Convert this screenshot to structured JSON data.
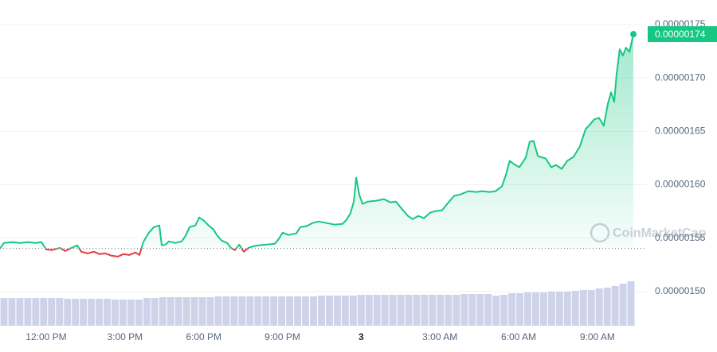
{
  "chart_data": {
    "type": "line",
    "x": [
      10.24,
      10.39,
      10.7,
      11.0,
      11.3,
      11.61,
      11.82,
      12.0,
      12.21,
      12.52,
      12.73,
      12.97,
      13.18,
      13.34,
      13.58,
      13.82,
      14.03,
      14.25,
      14.49,
      14.73,
      14.94,
      15.16,
      15.4,
      15.55,
      15.7,
      15.89,
      16.1,
      16.31,
      16.4,
      16.55,
      16.67,
      16.92,
      17.16,
      17.31,
      17.46,
      17.68,
      17.83,
      18.01,
      18.19,
      18.37,
      18.5,
      18.68,
      18.89,
      19.04,
      19.19,
      19.35,
      19.53,
      19.71,
      19.89,
      20.1,
      20.41,
      20.71,
      20.86,
      21.01,
      21.23,
      21.53,
      21.68,
      21.92,
      22.14,
      22.38,
      22.68,
      22.99,
      23.29,
      23.44,
      23.59,
      23.72,
      23.81,
      23.93,
      24.05,
      24.26,
      24.57,
      24.87,
      25.11,
      25.32,
      25.57,
      25.78,
      25.96,
      26.17,
      26.39,
      26.63,
      26.84,
      27.08,
      27.3,
      27.54,
      27.78,
      28.09,
      28.39,
      28.6,
      28.9,
      29.12,
      29.36,
      29.51,
      29.66,
      29.82,
      30.03,
      30.27,
      30.42,
      30.57,
      30.73,
      31.03,
      31.24,
      31.42,
      31.64,
      31.85,
      32.09,
      32.33,
      32.55,
      32.7,
      32.88,
      33.06,
      33.24,
      33.4,
      33.52,
      33.64,
      33.73,
      33.85,
      33.97,
      34.09,
      34.22,
      34.37
    ],
    "values": [
      1.5403e-06,
      1.5455e-06,
      1.5463e-06,
      1.5455e-06,
      1.5463e-06,
      1.5455e-06,
      1.5463e-06,
      1.5395e-06,
      1.5388e-06,
      1.541e-06,
      1.538e-06,
      1.541e-06,
      1.5433e-06,
      1.5373e-06,
      1.5358e-06,
      1.5373e-06,
      1.5351e-06,
      1.5358e-06,
      1.5336e-06,
      1.5328e-06,
      1.5351e-06,
      1.5343e-06,
      1.5366e-06,
      1.5343e-06,
      1.5463e-06,
      1.5545e-06,
      1.5604e-06,
      1.5619e-06,
      1.5433e-06,
      1.544e-06,
      1.547e-06,
      1.5455e-06,
      1.547e-06,
      1.5522e-06,
      1.5604e-06,
      1.5619e-06,
      1.5694e-06,
      1.5664e-06,
      1.5619e-06,
      1.5582e-06,
      1.553e-06,
      1.5478e-06,
      1.5455e-06,
      1.541e-06,
      1.5388e-06,
      1.544e-06,
      1.5373e-06,
      1.541e-06,
      1.5425e-06,
      1.5433e-06,
      1.544e-06,
      1.5448e-06,
      1.5493e-06,
      1.5552e-06,
      1.553e-06,
      1.5545e-06,
      1.5604e-06,
      1.5612e-06,
      1.5642e-06,
      1.5657e-06,
      1.5642e-06,
      1.5627e-06,
      1.5634e-06,
      1.5672e-06,
      1.5731e-06,
      1.5843e-06,
      1.6067e-06,
      1.5903e-06,
      1.5821e-06,
      1.5843e-06,
      1.5851e-06,
      1.5866e-06,
      1.5836e-06,
      1.5843e-06,
      1.5768e-06,
      1.5709e-06,
      1.5679e-06,
      1.5709e-06,
      1.5687e-06,
      1.5739e-06,
      1.5754e-06,
      1.5761e-06,
      1.5828e-06,
      1.5896e-06,
      1.591e-06,
      1.594e-06,
      1.5933e-06,
      1.594e-06,
      1.5933e-06,
      1.594e-06,
      1.5985e-06,
      1.609e-06,
      1.6224e-06,
      1.6194e-06,
      1.6164e-06,
      1.6254e-06,
      1.6403e-06,
      1.641e-06,
      1.6269e-06,
      1.6246e-06,
      1.6164e-06,
      1.6186e-06,
      1.6149e-06,
      1.6224e-06,
      1.6261e-06,
      1.6358e-06,
      1.6522e-06,
      1.656e-06,
      1.6612e-06,
      1.6627e-06,
      1.6552e-06,
      1.6761e-06,
      1.6866e-06,
      1.6776e-06,
      1.703e-06,
      1.7269e-06,
      1.7209e-06,
      1.7284e-06,
      1.7246e-06,
      1.741e-06
    ],
    "baseline": 1.5403e-06,
    "up_color": "#16c784",
    "down_color": "#ea3943",
    "xlim": [
      10.24,
      34.43
    ],
    "xticks": [
      {
        "value": 12,
        "label": "12:00 PM"
      },
      {
        "value": 15,
        "label": "3:00 PM"
      },
      {
        "value": 18,
        "label": "6:00 PM"
      },
      {
        "value": 21,
        "label": "9:00 PM"
      },
      {
        "value": 24,
        "label": "3"
      },
      {
        "value": 27,
        "label": "3:00 AM"
      },
      {
        "value": 30,
        "label": "6:00 AM"
      },
      {
        "value": 33,
        "label": "9:00 AM"
      }
    ],
    "ylim": [
      1.468e-06,
      1.773e-06
    ],
    "yticks": [
      {
        "value": 1.5e-06,
        "label": "0.00000150"
      },
      {
        "value": 1.55e-06,
        "label": "0.00000155"
      },
      {
        "value": 1.6e-06,
        "label": "0.00000160"
      },
      {
        "value": 1.65e-06,
        "label": "0.00000165"
      },
      {
        "value": 1.7e-06,
        "label": "0.00000170"
      },
      {
        "value": 1.75e-06,
        "label": "0.00000175"
      }
    ],
    "grid": true,
    "last_price_label": "0.00000174",
    "watermark": "CoinMarketCap",
    "volume": {
      "color": "#cfd3ea",
      "ylim": [
        0,
        100
      ],
      "values": [
        35,
        35,
        35,
        35,
        35,
        35,
        35,
        35,
        34,
        34,
        34,
        34,
        34,
        34,
        33,
        33,
        33,
        33,
        35,
        35,
        36,
        36,
        36,
        36,
        36,
        36,
        36,
        37,
        37,
        37,
        37,
        37,
        37,
        37,
        37,
        37,
        37,
        37,
        37,
        37,
        38,
        38,
        38,
        38,
        38,
        39,
        39,
        39,
        39,
        39,
        39,
        39,
        39,
        39,
        39,
        39,
        39,
        39,
        40,
        40,
        40,
        40,
        38,
        39,
        41,
        41,
        42,
        42,
        42,
        43,
        43,
        43,
        44,
        45,
        45,
        47,
        48,
        50,
        53,
        56
      ]
    }
  }
}
